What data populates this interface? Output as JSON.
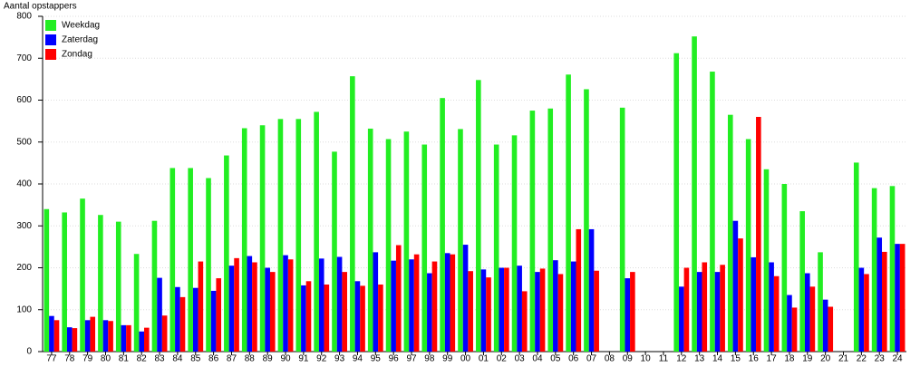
{
  "chart_data": {
    "type": "bar",
    "y_label": "Aantal opstappers",
    "categories": [
      "77",
      "78",
      "79",
      "80",
      "81",
      "82",
      "83",
      "84",
      "85",
      "86",
      "87",
      "88",
      "89",
      "90",
      "91",
      "92",
      "93",
      "94",
      "95",
      "96",
      "97",
      "98",
      "99",
      "00",
      "01",
      "02",
      "03",
      "04",
      "05",
      "06",
      "07",
      "08",
      "09",
      "10",
      "11",
      "12",
      "13",
      "14",
      "15",
      "16",
      "17",
      "18",
      "19",
      "20",
      "21",
      "22",
      "23",
      "24"
    ],
    "series": [
      {
        "name": "Weekdag",
        "color": "#22ee22",
        "values": [
          340,
          332,
          365,
          326,
          310,
          233,
          312,
          438,
          438,
          414,
          468,
          533,
          540,
          555,
          555,
          572,
          477,
          657,
          532,
          507,
          525,
          494,
          605,
          531,
          648,
          494,
          516,
          575,
          580,
          661,
          626,
          null,
          582,
          null,
          null,
          712,
          752,
          668,
          565,
          507,
          435,
          400,
          335,
          237,
          null,
          451,
          390,
          395
        ]
      },
      {
        "name": "Zaterdag",
        "color": "#0000ff",
        "values": [
          85,
          58,
          75,
          75,
          63,
          48,
          176,
          154,
          152,
          145,
          205,
          228,
          200,
          230,
          158,
          222,
          226,
          168,
          237,
          217,
          220,
          187,
          235,
          255,
          196,
          200,
          205,
          190,
          218,
          215,
          292,
          null,
          175,
          null,
          null,
          155,
          190,
          190,
          312,
          225,
          213,
          135,
          187,
          124,
          null,
          200,
          272,
          257
        ]
      },
      {
        "name": "Zondag",
        "color": "#ff0000",
        "values": [
          75,
          56,
          83,
          73,
          63,
          57,
          86,
          130,
          215,
          175,
          223,
          213,
          190,
          220,
          168,
          160,
          190,
          157,
          160,
          254,
          232,
          215,
          232,
          192,
          177,
          200,
          144,
          198,
          185,
          292,
          193,
          null,
          190,
          null,
          null,
          200,
          213,
          207,
          270,
          560,
          180,
          105,
          155,
          107,
          null,
          185,
          238,
          257
        ]
      }
    ],
    "ylim": [
      0,
      800
    ],
    "yticks": [
      0,
      100,
      200,
      300,
      400,
      500,
      600,
      700,
      800
    ],
    "grid": true,
    "legend": "upper-left"
  }
}
